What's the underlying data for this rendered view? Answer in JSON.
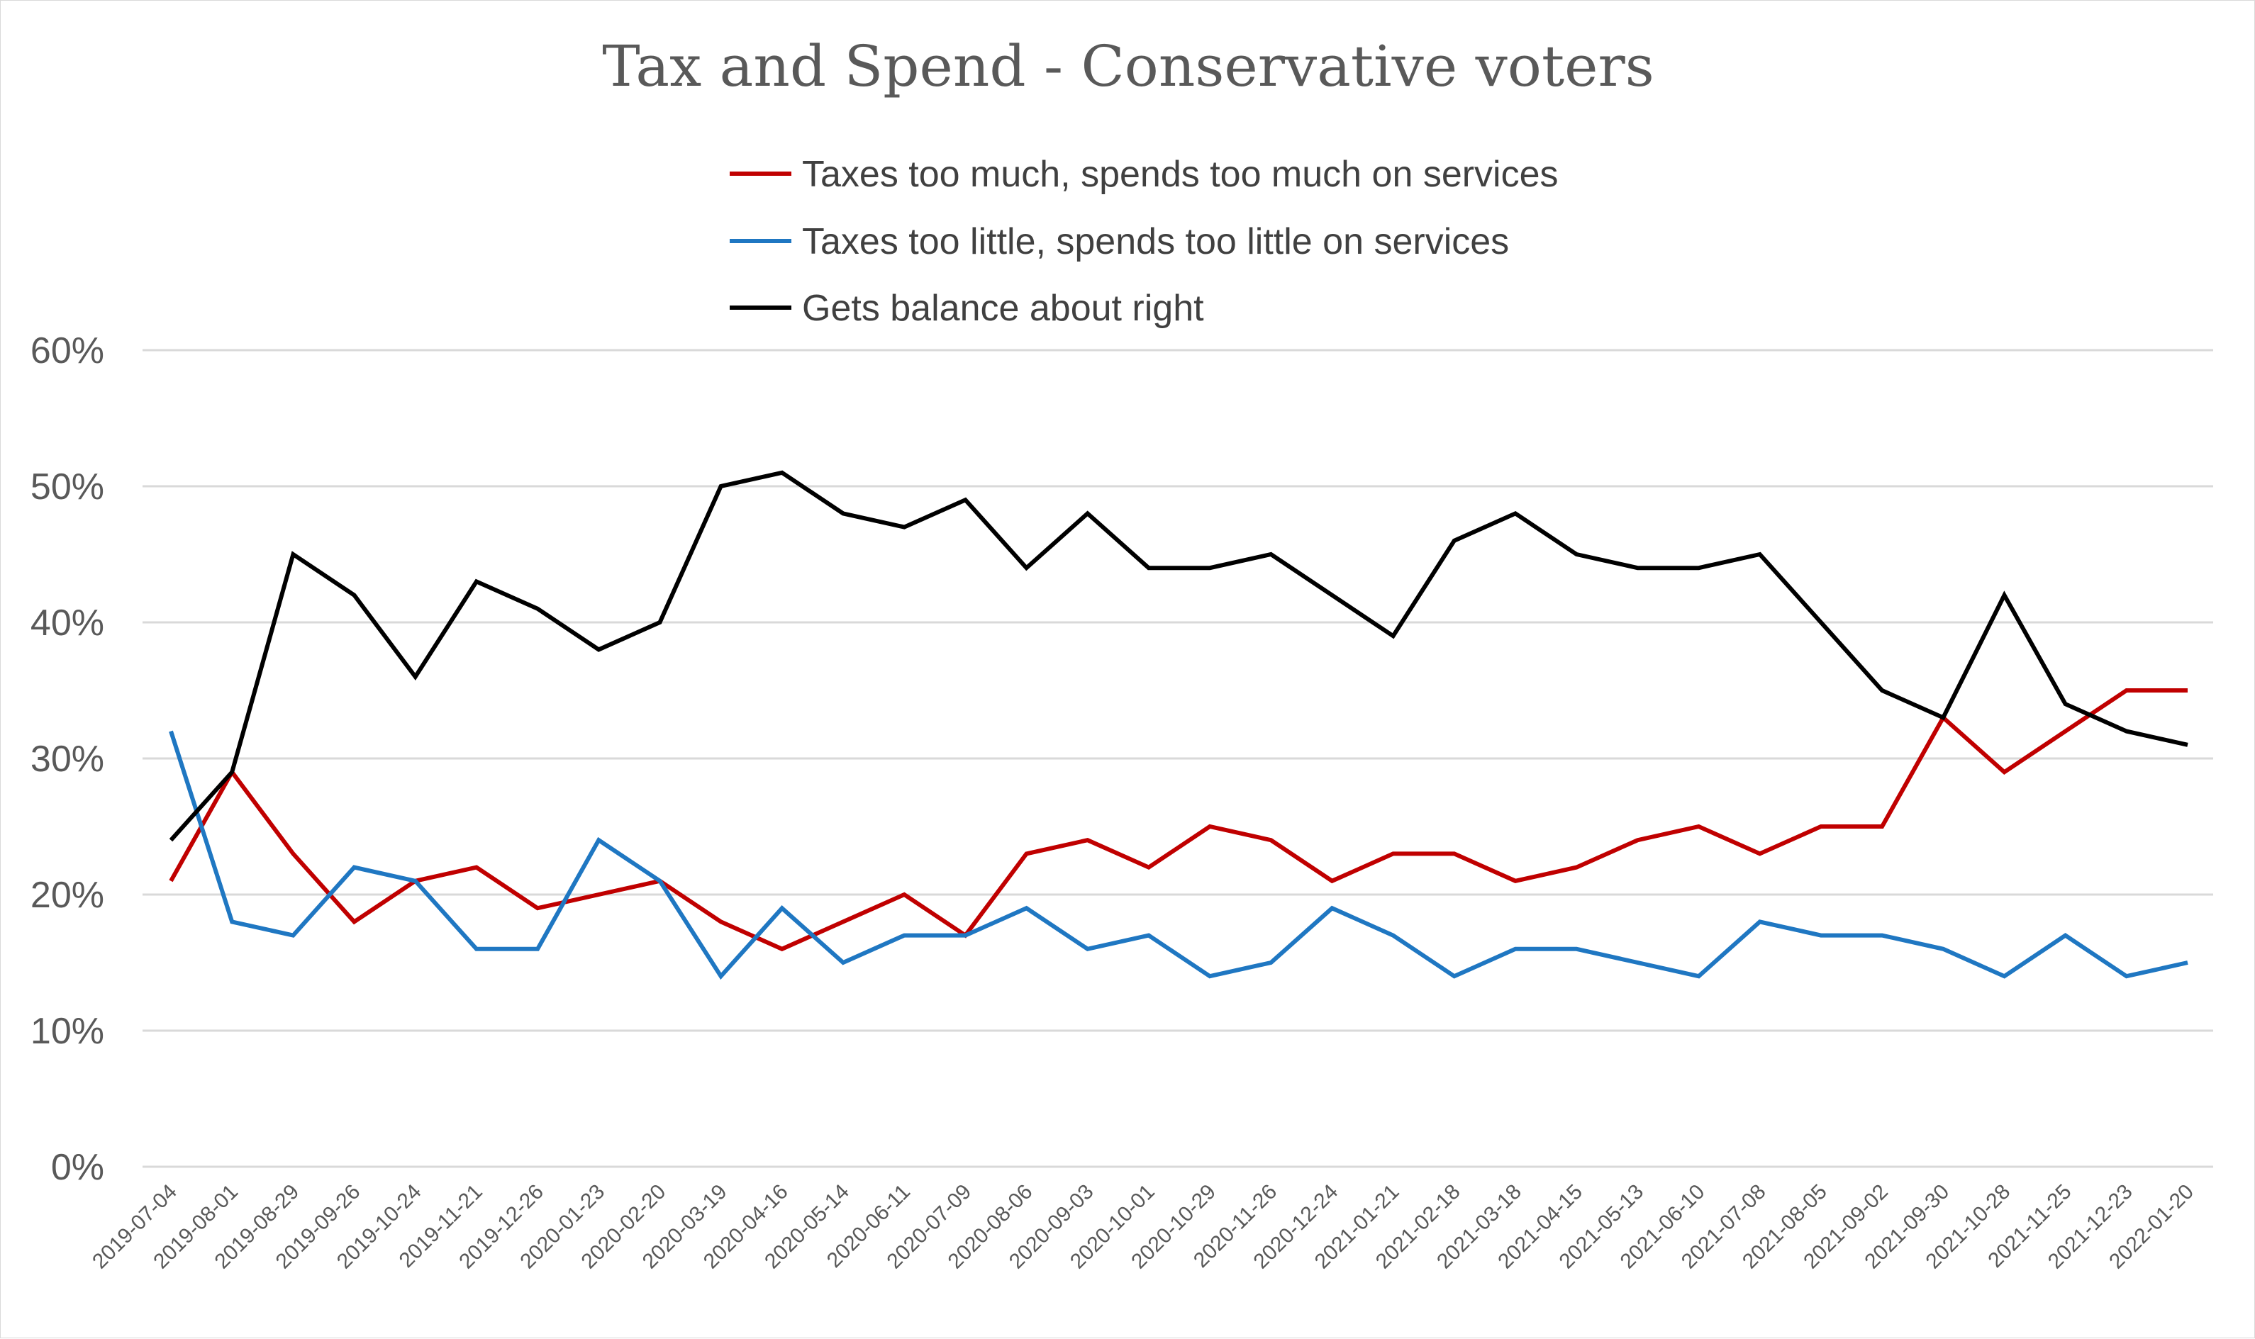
{
  "chart_data": {
    "type": "line",
    "title": "Tax and Spend - Conservative voters",
    "xlabel": "",
    "ylabel": "",
    "ylim": [
      0,
      60
    ],
    "y_ticks": [
      "0%",
      "10%",
      "20%",
      "30%",
      "40%",
      "50%",
      "60%"
    ],
    "y_tick_values": [
      0,
      10,
      20,
      30,
      40,
      50,
      60
    ],
    "grid": true,
    "legend_position": "top-center",
    "categories": [
      "2019-07-04",
      "2019-08-01",
      "2019-08-29",
      "2019-09-26",
      "2019-10-24",
      "2019-11-21",
      "2019-12-26",
      "2020-01-23",
      "2020-02-20",
      "2020-03-19",
      "2020-04-16",
      "2020-05-14",
      "2020-06-11",
      "2020-07-09",
      "2020-08-06",
      "2020-09-03",
      "2020-10-01",
      "2020-10-29",
      "2020-11-26",
      "2020-12-24",
      "2021-01-21",
      "2021-02-18",
      "2021-03-18",
      "2021-04-15",
      "2021-05-13",
      "2021-06-10",
      "2021-07-08",
      "2021-08-05",
      "2021-09-02",
      "2021-09-30",
      "2021-10-28",
      "2021-11-25",
      "2021-12-23",
      "2022-01-20"
    ],
    "series": [
      {
        "name": "Taxes too much, spends too much on services",
        "color": "#c00000",
        "values": [
          21,
          29,
          23,
          18,
          21,
          22,
          19,
          20,
          21,
          18,
          16,
          18,
          20,
          17,
          23,
          24,
          22,
          25,
          24,
          21,
          23,
          23,
          21,
          22,
          24,
          25,
          23,
          25,
          25,
          33,
          29,
          32,
          35,
          35
        ]
      },
      {
        "name": "Taxes too little, spends too little on services",
        "color": "#1f77c2",
        "values": [
          32,
          18,
          17,
          22,
          21,
          16,
          16,
          24,
          21,
          14,
          19,
          15,
          17,
          17,
          19,
          16,
          17,
          14,
          15,
          19,
          17,
          14,
          16,
          16,
          15,
          14,
          18,
          17,
          17,
          16,
          14,
          17,
          14,
          15
        ]
      },
      {
        "name": "Gets balance about right",
        "color": "#000000",
        "values": [
          24,
          29,
          45,
          42,
          36,
          43,
          41,
          38,
          40,
          50,
          51,
          48,
          47,
          49,
          44,
          48,
          44,
          44,
          45,
          42,
          39,
          46,
          48,
          45,
          44,
          44,
          45,
          40,
          35,
          33,
          42,
          34,
          32,
          31
        ]
      }
    ]
  }
}
